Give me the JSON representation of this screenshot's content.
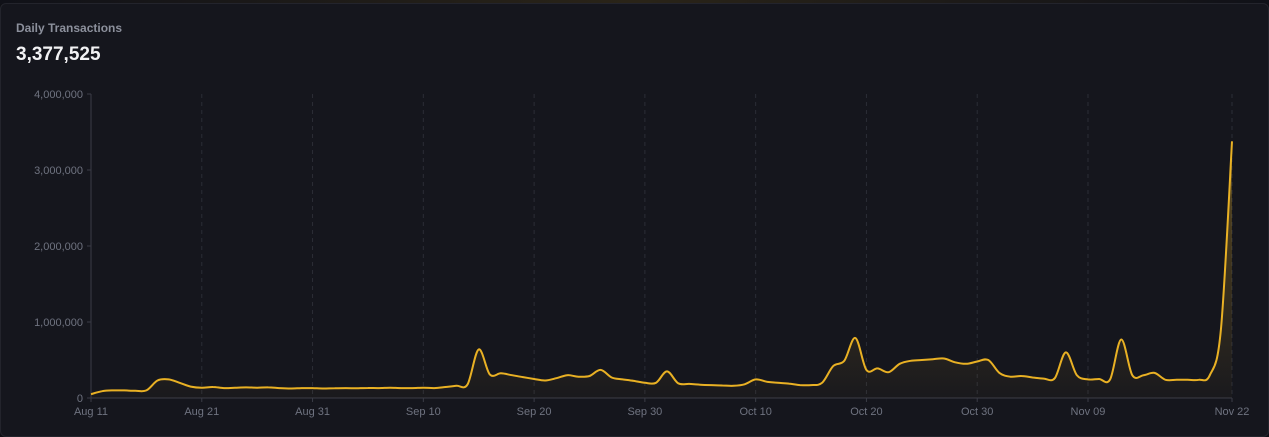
{
  "header": {
    "title": "Daily Transactions",
    "value": "3,377,525"
  },
  "colors": {
    "line": "#e9b124",
    "grid": "#2b2d36",
    "axis": "#3a3c46",
    "background": "#15161d"
  },
  "chart_data": {
    "type": "area",
    "title": "Daily Transactions",
    "xlabel": "",
    "ylabel": "",
    "grid": "vertical dashed",
    "xlim": [
      "2024-08-11",
      "2024-11-22"
    ],
    "ylim": [
      0,
      4000000
    ],
    "x_ticks": [
      {
        "label": "Aug 11",
        "day": 0
      },
      {
        "label": "Aug 21",
        "day": 10
      },
      {
        "label": "Aug 31",
        "day": 20
      },
      {
        "label": "Sep 10",
        "day": 30
      },
      {
        "label": "Sep 20",
        "day": 40
      },
      {
        "label": "Sep 30",
        "day": 50
      },
      {
        "label": "Oct 10",
        "day": 60
      },
      {
        "label": "Oct 20",
        "day": 70
      },
      {
        "label": "Oct 30",
        "day": 80
      },
      {
        "label": "Nov 09",
        "day": 90
      },
      {
        "label": "Nov 22",
        "day": 103
      }
    ],
    "y_ticks": [
      {
        "label": "0",
        "value": 0
      },
      {
        "label": "1,000,000",
        "value": 1000000
      },
      {
        "label": "2,000,000",
        "value": 2000000
      },
      {
        "label": "3,000,000",
        "value": 3000000
      },
      {
        "label": "4,000,000",
        "value": 4000000
      }
    ],
    "series": [
      {
        "values": [
          [
            0,
            50000
          ],
          [
            1,
            90000
          ],
          [
            2,
            100000
          ],
          [
            3,
            100000
          ],
          [
            4,
            95000
          ],
          [
            5,
            100000
          ],
          [
            6,
            230000
          ],
          [
            7,
            245000
          ],
          [
            8,
            200000
          ],
          [
            9,
            150000
          ],
          [
            10,
            135000
          ],
          [
            11,
            145000
          ],
          [
            12,
            130000
          ],
          [
            13,
            135000
          ],
          [
            14,
            140000
          ],
          [
            15,
            135000
          ],
          [
            16,
            140000
          ],
          [
            17,
            130000
          ],
          [
            18,
            125000
          ],
          [
            19,
            130000
          ],
          [
            20,
            130000
          ],
          [
            21,
            125000
          ],
          [
            22,
            128000
          ],
          [
            23,
            130000
          ],
          [
            24,
            128000
          ],
          [
            25,
            132000
          ],
          [
            26,
            130000
          ],
          [
            27,
            135000
          ],
          [
            28,
            130000
          ],
          [
            29,
            130000
          ],
          [
            30,
            135000
          ],
          [
            31,
            130000
          ],
          [
            32,
            145000
          ],
          [
            33,
            160000
          ],
          [
            34,
            180000
          ],
          [
            35,
            640000
          ],
          [
            36,
            310000
          ],
          [
            37,
            325000
          ],
          [
            38,
            300000
          ],
          [
            39,
            275000
          ],
          [
            40,
            250000
          ],
          [
            41,
            230000
          ],
          [
            42,
            260000
          ],
          [
            43,
            300000
          ],
          [
            44,
            280000
          ],
          [
            45,
            290000
          ],
          [
            46,
            370000
          ],
          [
            47,
            270000
          ],
          [
            48,
            245000
          ],
          [
            49,
            225000
          ],
          [
            50,
            200000
          ],
          [
            51,
            200000
          ],
          [
            52,
            350000
          ],
          [
            53,
            195000
          ],
          [
            54,
            185000
          ],
          [
            55,
            175000
          ],
          [
            56,
            170000
          ],
          [
            57,
            165000
          ],
          [
            58,
            160000
          ],
          [
            59,
            180000
          ],
          [
            60,
            245000
          ],
          [
            61,
            215000
          ],
          [
            62,
            200000
          ],
          [
            63,
            190000
          ],
          [
            64,
            170000
          ],
          [
            65,
            170000
          ],
          [
            66,
            200000
          ],
          [
            67,
            420000
          ],
          [
            68,
            490000
          ],
          [
            69,
            790000
          ],
          [
            70,
            370000
          ],
          [
            71,
            390000
          ],
          [
            72,
            340000
          ],
          [
            73,
            450000
          ],
          [
            74,
            490000
          ],
          [
            75,
            500000
          ],
          [
            76,
            510000
          ],
          [
            77,
            520000
          ],
          [
            78,
            470000
          ],
          [
            79,
            450000
          ],
          [
            80,
            480000
          ],
          [
            81,
            500000
          ],
          [
            82,
            330000
          ],
          [
            83,
            280000
          ],
          [
            84,
            290000
          ],
          [
            85,
            270000
          ],
          [
            86,
            255000
          ],
          [
            87,
            260000
          ],
          [
            88,
            600000
          ],
          [
            89,
            300000
          ],
          [
            90,
            245000
          ],
          [
            91,
            250000
          ],
          [
            92,
            245000
          ],
          [
            93,
            770000
          ],
          [
            94,
            300000
          ],
          [
            95,
            300000
          ],
          [
            96,
            330000
          ],
          [
            97,
            240000
          ],
          [
            98,
            240000
          ],
          [
            99,
            240000
          ],
          [
            100,
            240000
          ],
          [
            101,
            300000
          ],
          [
            102,
            900000
          ],
          [
            103,
            3377525
          ]
        ]
      }
    ]
  }
}
